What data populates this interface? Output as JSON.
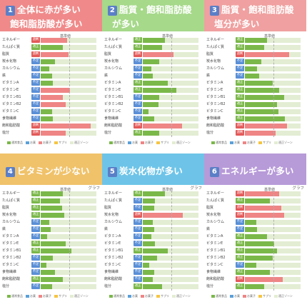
{
  "labels": {
    "kijun": "基準値",
    "graph": "グラフ"
  },
  "nutrients": [
    "エネルギー",
    "たんぱく質",
    "脂質",
    "炭水化物",
    "カルシウム",
    "鉄",
    "ビタミンA",
    "ビタミンE",
    "ビタミンB1",
    "ビタミンB2",
    "ビタミンC",
    "食物繊維",
    "飽和脂肪酸",
    "塩分"
  ],
  "legend": [
    "通常食品",
    "お菓",
    "お菓子",
    "サプリ",
    "適正ゾーン"
  ],
  "colors": {
    "normal_food": "#7bb84a",
    "okashi": "#5aa0d8",
    "okashi2": "#ef8585",
    "supplement": "#f5c542",
    "zone": "#e3edd3",
    "status_ok": "#7bb84a",
    "status_low": "#5a8fd6",
    "status_high": "#e35a5a"
  },
  "panels": [
    {
      "number": "1",
      "title_lines": [
        "全体に赤が多い",
        "飽和脂肪酸が多い"
      ],
      "header_color": "#f08a8a",
      "rows": [
        {
          "status": "過剰",
          "level": 0.48,
          "bar": "red"
        },
        {
          "status": "適正",
          "level": 0.4,
          "bar": "green"
        },
        {
          "status": "過剰",
          "level": 0.5,
          "bar": "red"
        },
        {
          "status": "不足",
          "level": 0.25,
          "bar": "green"
        },
        {
          "status": "不足",
          "level": 0.15,
          "bar": "green"
        },
        {
          "status": "不足",
          "level": 0.2,
          "bar": "green"
        },
        {
          "status": "不足",
          "level": 0.22,
          "bar": "green"
        },
        {
          "status": "不足",
          "level": 0.52,
          "bar": "red"
        },
        {
          "status": "不足",
          "level": 0.4,
          "bar": "red"
        },
        {
          "status": "不足",
          "level": 0.45,
          "bar": "red"
        },
        {
          "status": "不足",
          "level": 0.2,
          "bar": "green"
        },
        {
          "status": "不足",
          "level": 0.22,
          "bar": "green"
        },
        {
          "status": "過剰",
          "level": 0.9,
          "bar": "red"
        },
        {
          "status": "過剰",
          "level": 0.45,
          "bar": "red"
        }
      ]
    },
    {
      "number": "2",
      "title_lines": [
        "脂質・飽和脂肪酸",
        "が多い"
      ],
      "header_color": "#a6d98a",
      "rows": [
        {
          "status": "適正",
          "level": 0.4,
          "bar": "green"
        },
        {
          "status": "適正",
          "level": 0.35,
          "bar": "green"
        },
        {
          "status": "過剰",
          "level": 0.55,
          "bar": "red"
        },
        {
          "status": "不足",
          "level": 0.3,
          "bar": "green"
        },
        {
          "status": "不足",
          "level": 0.15,
          "bar": "green"
        },
        {
          "status": "不足",
          "level": 0.18,
          "bar": "green"
        },
        {
          "status": "適正",
          "level": 0.45,
          "bar": "green"
        },
        {
          "status": "適正",
          "level": 0.6,
          "bar": "green"
        },
        {
          "status": "不足",
          "level": 0.3,
          "bar": "green"
        },
        {
          "status": "不足",
          "level": 0.28,
          "bar": "green"
        },
        {
          "status": "不足",
          "level": 0.1,
          "bar": "green"
        },
        {
          "status": "不足",
          "level": 0.2,
          "bar": "green"
        },
        {
          "status": "過剰",
          "level": 0.7,
          "bar": "red"
        },
        {
          "status": "適正",
          "level": 0.3,
          "bar": "green"
        }
      ]
    },
    {
      "number": "3",
      "title_lines": [
        "脂質・飽和脂肪酸",
        "塩分が多い"
      ],
      "header_color": "#f0a0a0",
      "rows": [
        {
          "status": "適正",
          "level": 0.4,
          "bar": "green"
        },
        {
          "status": "適正",
          "level": 0.35,
          "bar": "green"
        },
        {
          "status": "過剰",
          "level": 0.8,
          "bar": "red"
        },
        {
          "status": "不足",
          "level": 0.3,
          "bar": "green"
        },
        {
          "status": "不足",
          "level": 0.22,
          "bar": "green"
        },
        {
          "status": "不足",
          "level": 0.25,
          "bar": "green"
        },
        {
          "status": "適正",
          "level": 0.5,
          "bar": "green"
        },
        {
          "status": "適正",
          "level": 0.62,
          "bar": "green"
        },
        {
          "status": "適正",
          "level": 0.7,
          "bar": "green"
        },
        {
          "status": "適正",
          "level": 0.58,
          "bar": "green"
        },
        {
          "status": "適正",
          "level": 0.6,
          "bar": "green"
        },
        {
          "status": "適正",
          "level": 0.72,
          "bar": "green"
        },
        {
          "status": "過剰",
          "level": 0.75,
          "bar": "red"
        },
        {
          "status": "過剰",
          "level": 0.55,
          "bar": "red"
        }
      ]
    },
    {
      "number": "4",
      "title_lines": [
        "ビタミンが少ない"
      ],
      "header_color": "#f0c26a",
      "rows": [
        {
          "status": "適正",
          "level": 0.4,
          "bar": "green"
        },
        {
          "status": "適正",
          "level": 0.35,
          "bar": "green"
        },
        {
          "status": "適正",
          "level": 0.38,
          "bar": "green"
        },
        {
          "status": "適正",
          "level": 0.42,
          "bar": "green"
        },
        {
          "status": "不足",
          "level": 0.15,
          "bar": "green"
        },
        {
          "status": "不足",
          "level": 0.18,
          "bar": "green"
        },
        {
          "status": "不足",
          "level": 0.12,
          "bar": "green"
        },
        {
          "status": "適正",
          "level": 0.45,
          "bar": "green"
        },
        {
          "status": "適正",
          "level": 0.55,
          "bar": "green"
        },
        {
          "status": "不足",
          "level": 0.22,
          "bar": "green"
        },
        {
          "status": "不足",
          "level": 0.1,
          "bar": "green"
        },
        {
          "status": "不足",
          "level": 0.25,
          "bar": "green"
        },
        {
          "status": "適正",
          "level": 0.4,
          "bar": "green"
        },
        {
          "status": "不足",
          "level": 0.2,
          "bar": "green"
        }
      ]
    },
    {
      "number": "5",
      "title_lines": [
        "炭水化物が多い"
      ],
      "header_color": "#6ec4e8",
      "rows": [
        {
          "status": "適正",
          "level": 0.4,
          "bar": "green"
        },
        {
          "status": "不足",
          "level": 0.22,
          "bar": "green"
        },
        {
          "status": "不足",
          "level": 0.2,
          "bar": "green"
        },
        {
          "status": "過剰",
          "level": 0.72,
          "bar": "red"
        },
        {
          "status": "不足",
          "level": 0.18,
          "bar": "green"
        },
        {
          "status": "不足",
          "level": 0.2,
          "bar": "green"
        },
        {
          "status": "不足",
          "level": 0.15,
          "bar": "green"
        },
        {
          "status": "不足",
          "level": 0.22,
          "bar": "green"
        },
        {
          "status": "適正",
          "level": 0.45,
          "bar": "green"
        },
        {
          "status": "不足",
          "level": 0.25,
          "bar": "green"
        },
        {
          "status": "不足",
          "level": 0.12,
          "bar": "green"
        },
        {
          "status": "不足",
          "level": 0.2,
          "bar": "green"
        },
        {
          "status": "不足",
          "level": 0.18,
          "bar": "green"
        },
        {
          "status": "適正",
          "level": 0.35,
          "bar": "green"
        }
      ]
    },
    {
      "number": "6",
      "title_lines": [
        "エネルギーが多い"
      ],
      "header_color": "#b79ad8",
      "rows": [
        {
          "status": "過剰",
          "level": 0.62,
          "bar": "red"
        },
        {
          "status": "適正",
          "level": 0.45,
          "bar": "green"
        },
        {
          "status": "過剰",
          "level": 0.65,
          "bar": "red"
        },
        {
          "status": "過剰",
          "level": 0.7,
          "bar": "red"
        },
        {
          "status": "不足",
          "level": 0.2,
          "bar": "green"
        },
        {
          "status": "不足",
          "level": 0.22,
          "bar": "green"
        },
        {
          "status": "適正",
          "level": 0.4,
          "bar": "green"
        },
        {
          "status": "適正",
          "level": 0.52,
          "bar": "green"
        },
        {
          "status": "適正",
          "level": 0.58,
          "bar": "green"
        },
        {
          "status": "適正",
          "level": 0.5,
          "bar": "green"
        },
        {
          "status": "不足",
          "level": 0.2,
          "bar": "green"
        },
        {
          "status": "適正",
          "level": 0.45,
          "bar": "green"
        },
        {
          "status": "過剰",
          "level": 0.68,
          "bar": "red"
        },
        {
          "status": "適正",
          "level": 0.35,
          "bar": "green"
        }
      ]
    }
  ]
}
